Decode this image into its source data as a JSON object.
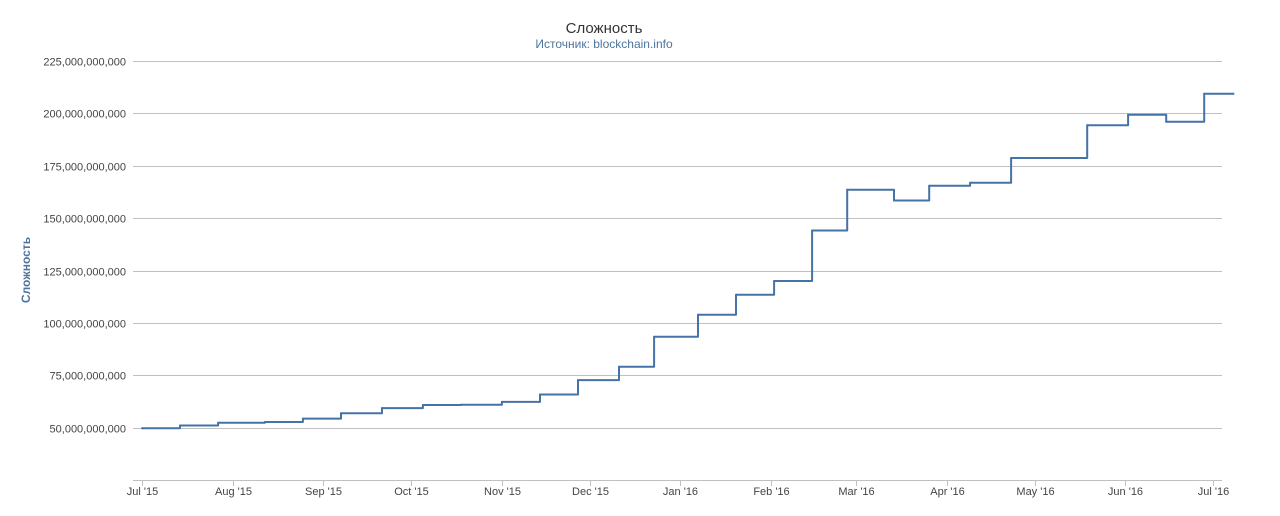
{
  "colors": {
    "series": "#4572a7",
    "grid": "#c0c0c0",
    "title": "#333333",
    "subtitle": "#4d759e",
    "axis_label": "#4d759e"
  },
  "chart_data": {
    "type": "line",
    "step": true,
    "title": "Сложность",
    "subtitle": "Источник: blockchain.info",
    "xlabel": "",
    "ylabel": "Сложность",
    "ylim": [
      25000000000,
      225000000000
    ],
    "grid": true,
    "legend": "none",
    "y_ticks": [
      {
        "value": 50000000000,
        "label": "50,000,000,000"
      },
      {
        "value": 75000000000,
        "label": "75,000,000,000"
      },
      {
        "value": 100000000000,
        "label": "100,000,000,000"
      },
      {
        "value": 125000000000,
        "label": "125,000,000,000"
      },
      {
        "value": 150000000000,
        "label": "150,000,000,000"
      },
      {
        "value": 175000000000,
        "label": "175,000,000,000"
      },
      {
        "value": 200000000000,
        "label": "200,000,000,000"
      },
      {
        "value": 225000000000,
        "label": "225,000,000,000"
      }
    ],
    "x_ticks": [
      {
        "date": "2015-07-01",
        "label": "Jul '15"
      },
      {
        "date": "2015-08-01",
        "label": "Aug '15"
      },
      {
        "date": "2015-09-01",
        "label": "Sep '15"
      },
      {
        "date": "2015-10-01",
        "label": "Oct '15"
      },
      {
        "date": "2015-11-01",
        "label": "Nov '15"
      },
      {
        "date": "2015-12-01",
        "label": "Dec '15"
      },
      {
        "date": "2016-01-01",
        "label": "Jan '16"
      },
      {
        "date": "2016-02-01",
        "label": "Feb '16"
      },
      {
        "date": "2016-03-01",
        "label": "Mar '16"
      },
      {
        "date": "2016-04-01",
        "label": "Apr '16"
      },
      {
        "date": "2016-05-01",
        "label": "May '16"
      },
      {
        "date": "2016-06-01",
        "label": "Jun '16"
      },
      {
        "date": "2016-07-01",
        "label": "Jul '16"
      }
    ],
    "series": [
      {
        "points": [
          {
            "x": "2015-07-01",
            "y": 49700000000
          },
          {
            "x": "2015-07-14",
            "y": 51000000000
          },
          {
            "x": "2015-07-27",
            "y": 52300000000
          },
          {
            "x": "2015-08-12",
            "y": 52700000000
          },
          {
            "x": "2015-08-25",
            "y": 54300000000
          },
          {
            "x": "2015-09-07",
            "y": 56900000000
          },
          {
            "x": "2015-09-21",
            "y": 59300000000
          },
          {
            "x": "2015-10-05",
            "y": 60800000000
          },
          {
            "x": "2015-10-18",
            "y": 60900000000
          },
          {
            "x": "2015-11-01",
            "y": 62300000000
          },
          {
            "x": "2015-11-14",
            "y": 65800000000
          },
          {
            "x": "2015-11-27",
            "y": 72700000000
          },
          {
            "x": "2015-12-11",
            "y": 79100000000
          },
          {
            "x": "2015-12-23",
            "y": 93400000000
          },
          {
            "x": "2016-01-07",
            "y": 103900000000
          },
          {
            "x": "2016-01-20",
            "y": 113400000000
          },
          {
            "x": "2016-02-02",
            "y": 120000000000
          },
          {
            "x": "2016-02-15",
            "y": 144100000000
          },
          {
            "x": "2016-02-27",
            "y": 163500000000
          },
          {
            "x": "2016-03-14",
            "y": 158400000000
          },
          {
            "x": "2016-03-26",
            "y": 165500000000
          },
          {
            "x": "2016-04-09",
            "y": 166900000000
          },
          {
            "x": "2016-04-23",
            "y": 178700000000
          },
          {
            "x": "2016-05-05",
            "y": 178700000000
          },
          {
            "x": "2016-05-18",
            "y": 178700000000
          },
          {
            "x": "2016-05-19",
            "y": 194300000000
          },
          {
            "x": "2016-06-02",
            "y": 199300000000
          },
          {
            "x": "2016-06-15",
            "y": 196000000000
          },
          {
            "x": "2016-06-28",
            "y": 209400000000
          },
          {
            "x": "2016-07-08",
            "y": 209400000000
          }
        ]
      }
    ]
  }
}
